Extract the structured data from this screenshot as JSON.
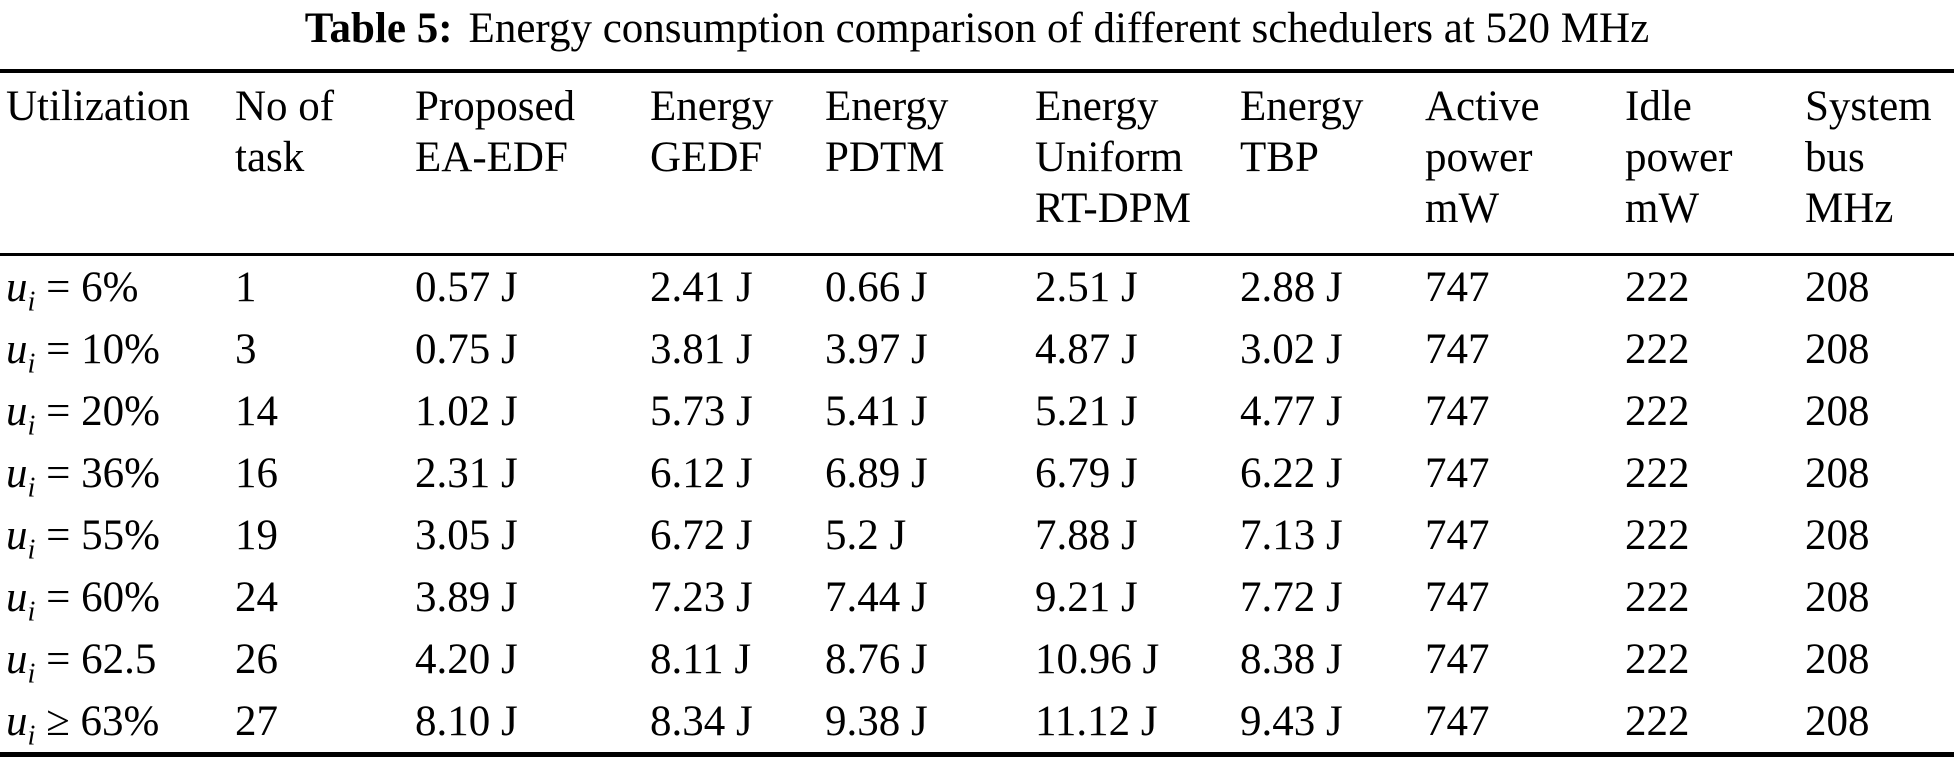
{
  "caption": {
    "label": "Table 5:",
    "text": "Energy consumption comparison of different schedulers at 520 MHz"
  },
  "table": {
    "columns": [
      {
        "id": "utilization",
        "label": "Utilization"
      },
      {
        "id": "tasks",
        "label": "No of\ntask"
      },
      {
        "id": "ea_edf",
        "label": "Proposed\nEA-EDF"
      },
      {
        "id": "gedf",
        "label": "Energy\nGEDF"
      },
      {
        "id": "pdtm",
        "label": "Energy\nPDTM"
      },
      {
        "id": "rt_dpm",
        "label": "Energy\nUniform\nRT-DPM"
      },
      {
        "id": "tbp",
        "label": "Energy\nTBP"
      },
      {
        "id": "active_power",
        "label": "Active\npower\nmW"
      },
      {
        "id": "idle_power",
        "label": "Idle\npower\nmW"
      },
      {
        "id": "system_bus",
        "label": "System\nbus\nMHz"
      }
    ],
    "rows": [
      {
        "utilization": {
          "symbol": "u",
          "subscript": "i",
          "relation": "=",
          "value": "6%"
        },
        "tasks": "1",
        "ea_edf": "0.57 J",
        "gedf": "2.41 J",
        "pdtm": "0.66 J",
        "rt_dpm": "2.51 J",
        "tbp": "2.88 J",
        "active_power": "747",
        "idle_power": "222",
        "system_bus": "208"
      },
      {
        "utilization": {
          "symbol": "u",
          "subscript": "i",
          "relation": "=",
          "value": "10%"
        },
        "tasks": "3",
        "ea_edf": "0.75 J",
        "gedf": "3.81 J",
        "pdtm": "3.97 J",
        "rt_dpm": "4.87 J",
        "tbp": "3.02 J",
        "active_power": "747",
        "idle_power": "222",
        "system_bus": "208"
      },
      {
        "utilization": {
          "symbol": "u",
          "subscript": "i",
          "relation": "=",
          "value": "20%"
        },
        "tasks": "14",
        "ea_edf": "1.02 J",
        "gedf": "5.73 J",
        "pdtm": "5.41 J",
        "rt_dpm": "5.21 J",
        "tbp": "4.77 J",
        "active_power": "747",
        "idle_power": "222",
        "system_bus": "208"
      },
      {
        "utilization": {
          "symbol": "u",
          "subscript": "i",
          "relation": "=",
          "value": "36%"
        },
        "tasks": "16",
        "ea_edf": "2.31 J",
        "gedf": "6.12 J",
        "pdtm": "6.89 J",
        "rt_dpm": "6.79 J",
        "tbp": "6.22 J",
        "active_power": "747",
        "idle_power": "222",
        "system_bus": "208"
      },
      {
        "utilization": {
          "symbol": "u",
          "subscript": "i",
          "relation": "=",
          "value": "55%"
        },
        "tasks": "19",
        "ea_edf": "3.05 J",
        "gedf": "6.72 J",
        "pdtm": "5.2 J",
        "rt_dpm": "7.88 J",
        "tbp": "7.13 J",
        "active_power": "747",
        "idle_power": "222",
        "system_bus": "208"
      },
      {
        "utilization": {
          "symbol": "u",
          "subscript": "i",
          "relation": "=",
          "value": "60%"
        },
        "tasks": "24",
        "ea_edf": "3.89 J",
        "gedf": "7.23 J",
        "pdtm": "7.44 J",
        "rt_dpm": "9.21 J",
        "tbp": "7.72 J",
        "active_power": "747",
        "idle_power": "222",
        "system_bus": "208"
      },
      {
        "utilization": {
          "symbol": "u",
          "subscript": "i",
          "relation": "=",
          "value": "62.5"
        },
        "tasks": "26",
        "ea_edf": "4.20 J",
        "gedf": "8.11 J",
        "pdtm": "8.76 J",
        "rt_dpm": "10.96 J",
        "tbp": "8.38 J",
        "active_power": "747",
        "idle_power": "222",
        "system_bus": "208"
      },
      {
        "utilization": {
          "symbol": "u",
          "subscript": "i",
          "relation": "≥",
          "value": "63%"
        },
        "tasks": "27",
        "ea_edf": "8.10 J",
        "gedf": "8.34 J",
        "pdtm": "9.38 J",
        "rt_dpm": "11.12 J",
        "tbp": "9.43 J",
        "active_power": "747",
        "idle_power": "222",
        "system_bus": "208"
      }
    ]
  }
}
